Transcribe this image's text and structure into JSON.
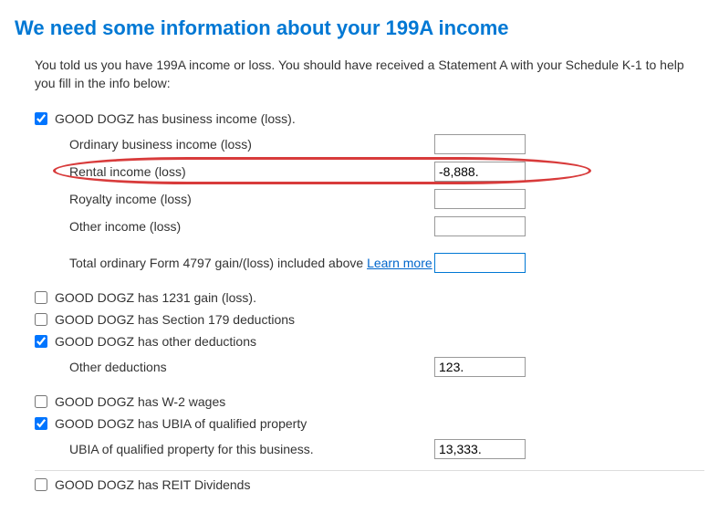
{
  "title": "We need some information about your 199A income",
  "intro": "You told us you have 199A income or loss. You should have received a Statement A with your Schedule K-1 to help you fill in the info below:",
  "entity": "GOOD DOGZ",
  "sections": {
    "business_income": {
      "label": "GOOD DOGZ has business income (loss).",
      "checked": true,
      "fields": {
        "ordinary": {
          "label": "Ordinary business income (loss)",
          "value": ""
        },
        "rental": {
          "label": "Rental income (loss)",
          "value": "-8,888."
        },
        "royalty": {
          "label": "Royalty income (loss)",
          "value": ""
        },
        "other": {
          "label": "Other income (loss)",
          "value": ""
        },
        "form4797": {
          "label_pre": "Total ordinary Form 4797 gain/(loss) included above ",
          "learn_more": "Learn more",
          "value": ""
        }
      }
    },
    "gain_1231": {
      "label": "GOOD DOGZ has 1231 gain (loss).",
      "checked": false
    },
    "section_179": {
      "label": "GOOD DOGZ has Section 179 deductions",
      "checked": false
    },
    "other_deductions": {
      "label": "GOOD DOGZ has other deductions",
      "checked": true,
      "field": {
        "label": "Other deductions",
        "value": "123."
      }
    },
    "w2_wages": {
      "label": "GOOD DOGZ has W-2 wages",
      "checked": false
    },
    "ubia": {
      "label": "GOOD DOGZ has UBIA of qualified property",
      "checked": true,
      "field": {
        "label": "UBIA of qualified property for this business.",
        "value": "13,333."
      }
    },
    "reit": {
      "label": "GOOD DOGZ has REIT Dividends",
      "checked": false
    }
  },
  "highlight_color": "#d83b3b",
  "accent_color": "#0078d4"
}
